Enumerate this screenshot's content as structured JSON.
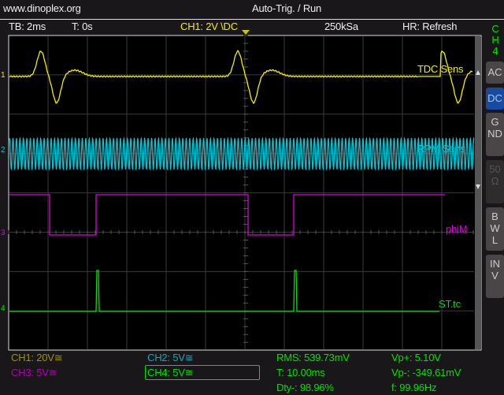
{
  "header": {
    "site": "www.dinoplex.org",
    "mode": "Auto-Trig. / Run"
  },
  "status": {
    "timebase": "TB: 2ms",
    "trigger_time": "T: 0s",
    "trigger_source": "CH1: 2V \\DC",
    "sample_rate": "250kSa",
    "hr_mode": "HR: Refresh"
  },
  "traces": [
    {
      "marker": "1",
      "label": "TDC Sens",
      "color": "#f0f000"
    },
    {
      "marker": "2",
      "label": "RPM Sens",
      "color": "#00c8d8"
    },
    {
      "marker": "3",
      "label": "phiM",
      "color": "#e000e0"
    },
    {
      "marker": "4",
      "label": "ST.tc",
      "color": "#00e000"
    }
  ],
  "side_panel": {
    "channel": "CH4",
    "buttons": [
      "AC",
      "DC",
      "GND",
      "50Ω",
      "BWL",
      "INV"
    ],
    "selected": "DC",
    "disabled": "50Ω"
  },
  "footer": {
    "ch1": "CH1: 20V≅",
    "ch2": "CH2: 5V≅",
    "ch3": "CH3: 5V≅",
    "ch4": "CH4: 5V≅",
    "rms": "RMS: 539.73mV",
    "period": "T: 10.00ms",
    "duty": "Dty-: 98.96%",
    "vp_plus": "Vp+: 5.10V",
    "vp_minus": "Vp-: -349.61mV",
    "freq": "f: 99.96Hz"
  }
}
